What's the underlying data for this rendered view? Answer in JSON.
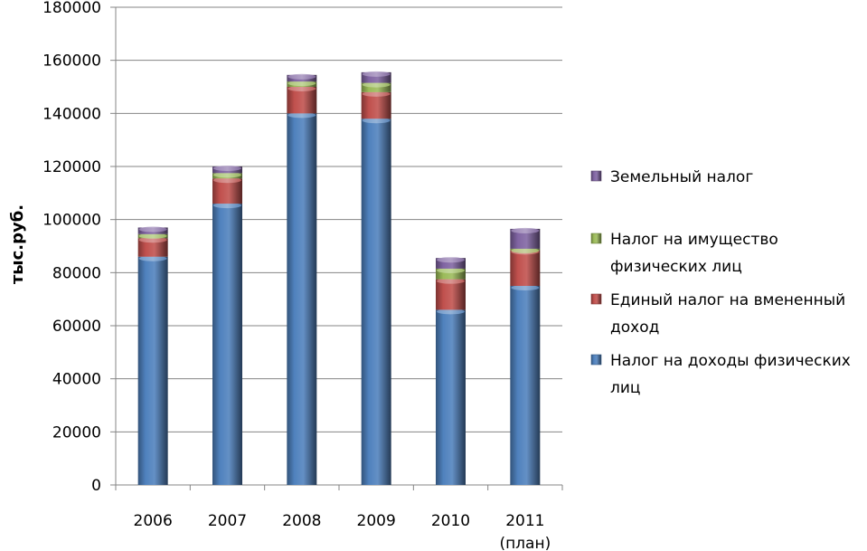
{
  "chart_data": {
    "type": "bar",
    "stacked": true,
    "categories": [
      "2006",
      "2007",
      "2008",
      "2009",
      "2010",
      "2011\n(план)"
    ],
    "category_lines": [
      [
        "2006"
      ],
      [
        "2007"
      ],
      [
        "2008"
      ],
      [
        "2009"
      ],
      [
        "2010"
      ],
      [
        "2011",
        "(план)"
      ]
    ],
    "ylabel": "тыс.руб.",
    "xlabel": "",
    "ylim": [
      0,
      180000
    ],
    "yticks": [
      0,
      20000,
      40000,
      60000,
      80000,
      100000,
      120000,
      140000,
      160000,
      180000
    ],
    "ytick_labels": [
      "0",
      "20000",
      "40000",
      "60000",
      "80000",
      "100000",
      "120000",
      "140000",
      "160000",
      "180000"
    ],
    "grid": true,
    "legend_position": "right",
    "series": [
      {
        "name": "Налог на доходы физических лиц",
        "legend_lines": [
          "Налог на доходы физических",
          "лиц"
        ],
        "color": "#4F81BD",
        "values": [
          86000,
          106000,
          140000,
          138000,
          66000,
          75000
        ]
      },
      {
        "name": "Единый налог на вмененный доход",
        "legend_lines": [
          "Единый налог на вмененный",
          "доход"
        ],
        "color": "#C0504D",
        "values": [
          7000,
          9500,
          10000,
          10000,
          11500,
          13500
        ]
      },
      {
        "name": "Налог на имущество физических лиц",
        "legend_lines": [
          "Налог на имущество",
          "физических лиц"
        ],
        "color": "#9BBB59",
        "values": [
          1500,
          2000,
          2000,
          3500,
          4000,
          500
        ]
      },
      {
        "name": "Земельный налог",
        "legend_lines": [
          "Земельный налог"
        ],
        "color": "#8064A2",
        "values": [
          2500,
          2500,
          2500,
          4000,
          4000,
          7500
        ]
      }
    ],
    "legend_order": [
      3,
      2,
      1,
      0
    ]
  }
}
